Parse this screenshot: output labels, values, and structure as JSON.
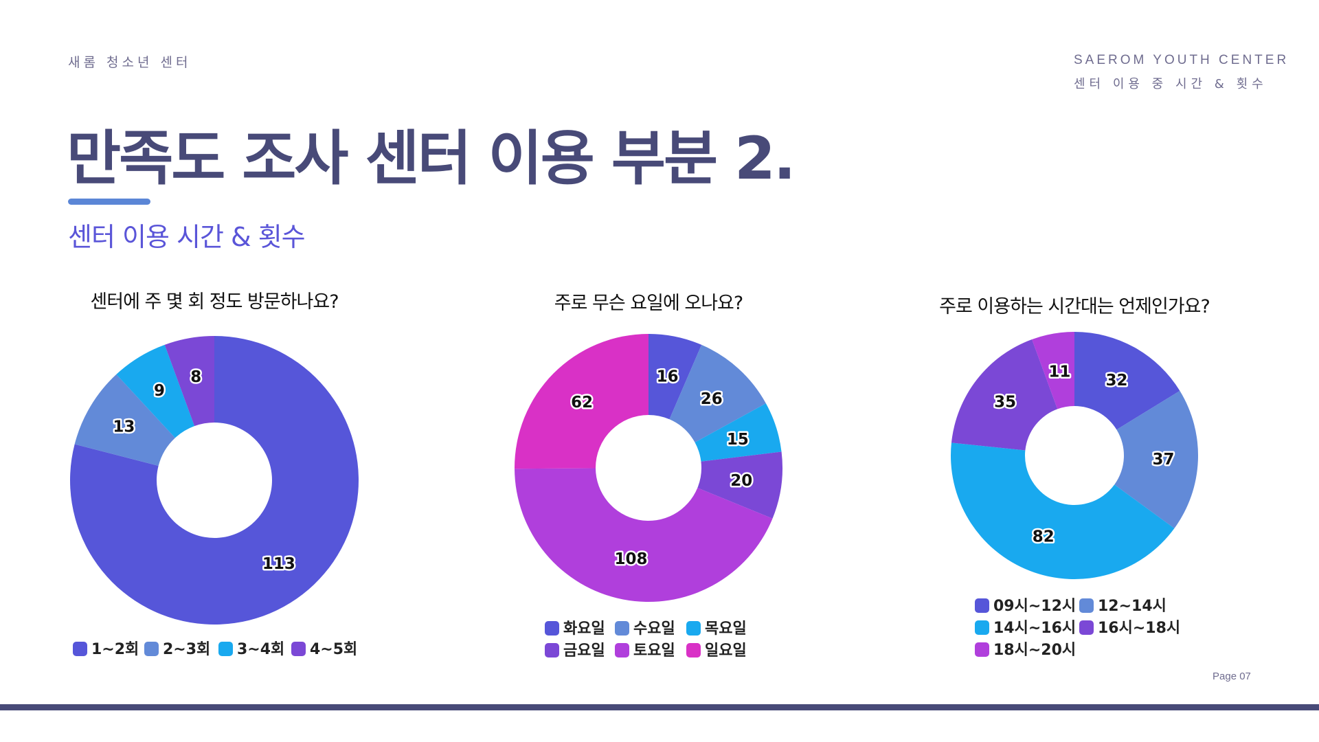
{
  "header": {
    "org_name_ko": "새롬 청소년 센터",
    "org_name_en": "SAEROM YOUTH CENTER",
    "section_label": "센터 이용 중 시간 & 횟수"
  },
  "title": "만족도 조사 센터 이용 부분 2.",
  "subtitle": "센터 이용 시간 & 횟수",
  "footer": {
    "page": "Page 07"
  },
  "colors": {
    "title": "#484a78",
    "accent": "#5b86d6",
    "subtitle": "#5a55d8",
    "footer_bar": "#484a78"
  },
  "chart_data": [
    {
      "type": "pie",
      "donut": true,
      "title": "센터에 주 몇 회 정도 방문하나요?",
      "categories": [
        "1~2회",
        "2~3회",
        "3~4회",
        "4~5회"
      ],
      "values": [
        113,
        13,
        9,
        8
      ],
      "colors": [
        "#5656d9",
        "#628ad8",
        "#19a9ef",
        "#7b48d6"
      ],
      "legend": "bottom"
    },
    {
      "type": "pie",
      "donut": true,
      "title": "주로 무슨 요일에 오나요?",
      "categories": [
        "화요일",
        "수요일",
        "목요일",
        "금요일",
        "토요일",
        "일요일"
      ],
      "values": [
        16,
        26,
        15,
        20,
        108,
        62
      ],
      "colors": [
        "#5656d9",
        "#628ad8",
        "#19a9ef",
        "#7b48d6",
        "#b03fdc",
        "#d931c6"
      ],
      "legend": "bottom"
    },
    {
      "type": "pie",
      "donut": true,
      "title": "주로 이용하는 시간대는 언제인가요?",
      "categories": [
        "09시~12시",
        "12~14시",
        "14시~16시",
        "16시~18시",
        "18시~20시"
      ],
      "values": [
        32,
        37,
        82,
        35,
        11
      ],
      "colors": [
        "#5656d9",
        "#628ad8",
        "#19a9ef",
        "#7b48d6",
        "#b03fdc"
      ],
      "legend": "bottom"
    }
  ]
}
